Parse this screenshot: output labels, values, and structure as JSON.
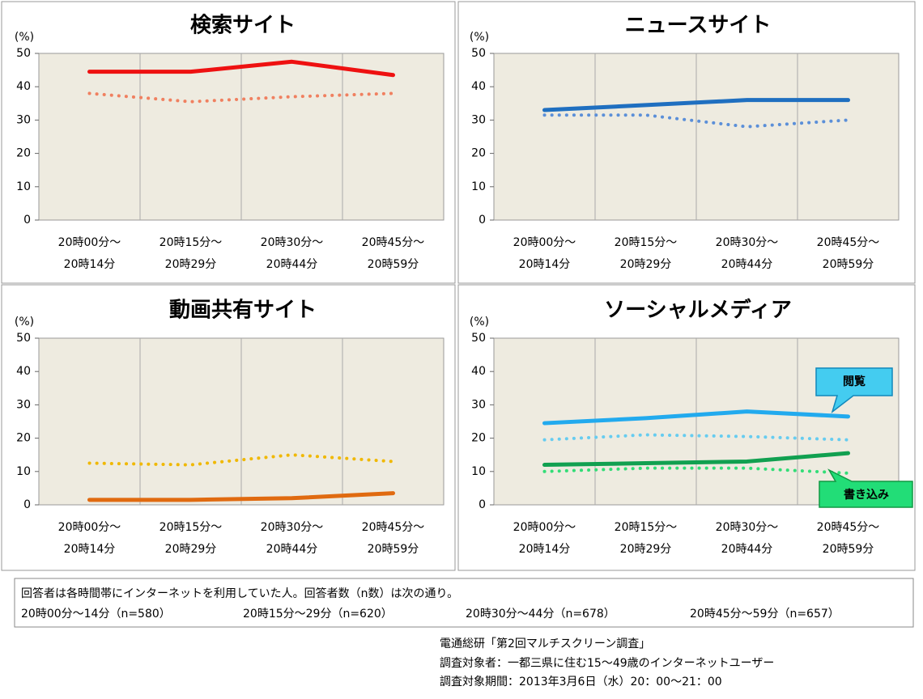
{
  "chart_data": [
    {
      "type": "line",
      "title": "検索サイト",
      "ylabel": "(%)",
      "categories": [
        [
          "20時00分〜",
          "20時14分"
        ],
        [
          "20時15分〜",
          "20時29分"
        ],
        [
          "20時30分〜",
          "20時44分"
        ],
        [
          "20時45分〜",
          "20時59分"
        ]
      ],
      "series": [
        {
          "color": "#ee1111",
          "dash": false,
          "values": [
            44.5,
            44.5,
            47.5,
            43.5
          ]
        },
        {
          "color": "#f08060",
          "dash": true,
          "values": [
            38,
            35.5,
            37,
            38
          ]
        }
      ],
      "ylim": [
        0,
        50
      ],
      "yticks": [
        0,
        10,
        20,
        30,
        40,
        50
      ]
    },
    {
      "type": "line",
      "title": "ニュースサイト",
      "ylabel": "(%)",
      "categories": [
        [
          "20時00分〜",
          "20時14分"
        ],
        [
          "20時15分〜",
          "20時29分"
        ],
        [
          "20時30分〜",
          "20時44分"
        ],
        [
          "20時45分〜",
          "20時59分"
        ]
      ],
      "series": [
        {
          "color": "#1f6fc0",
          "dash": false,
          "values": [
            33,
            34.5,
            36,
            36
          ]
        },
        {
          "color": "#5b8fd8",
          "dash": true,
          "values": [
            31.5,
            31.5,
            28,
            30
          ]
        }
      ],
      "ylim": [
        0,
        50
      ],
      "yticks": [
        0,
        10,
        20,
        30,
        40,
        50
      ]
    },
    {
      "type": "line",
      "title": "動画共有サイト",
      "ylabel": "(%)",
      "categories": [
        [
          "20時00分〜",
          "20時14分"
        ],
        [
          "20時15分〜",
          "20時29分"
        ],
        [
          "20時30分〜",
          "20時44分"
        ],
        [
          "20時45分〜",
          "20時59分"
        ]
      ],
      "series": [
        {
          "color": "#e06a10",
          "dash": false,
          "values": [
            1.5,
            1.5,
            2,
            3.5
          ]
        },
        {
          "color": "#f0b800",
          "dash": true,
          "values": [
            12.5,
            12,
            15,
            13
          ]
        }
      ],
      "ylim": [
        0,
        50
      ],
      "yticks": [
        0,
        10,
        20,
        30,
        40,
        50
      ]
    },
    {
      "type": "line",
      "title": "ソーシャルメディア",
      "ylabel": "(%)",
      "categories": [
        [
          "20時00分〜",
          "20時14分"
        ],
        [
          "20時15分〜",
          "20時29分"
        ],
        [
          "20時30分〜",
          "20時44分"
        ],
        [
          "20時45分〜",
          "20時59分"
        ]
      ],
      "series": [
        {
          "color": "#22aaee",
          "dash": false,
          "values": [
            24.5,
            26,
            28,
            26.5
          ]
        },
        {
          "color": "#66ccf0",
          "dash": true,
          "values": [
            19.5,
            21,
            20.5,
            19.5
          ]
        },
        {
          "color": "#11a050",
          "dash": false,
          "values": [
            12,
            12.5,
            13,
            15.5
          ]
        },
        {
          "color": "#33dd77",
          "dash": true,
          "values": [
            10,
            11,
            11,
            9.5
          ]
        }
      ],
      "annotations": [
        "閲覧",
        "書き込み"
      ],
      "ylim": [
        0,
        50
      ],
      "yticks": [
        0,
        10,
        20,
        30,
        40,
        50
      ]
    }
  ],
  "note": {
    "line1": "回答者は各時間帯にインターネットを利用していた人。回答者数（n数）は次の通り。",
    "counts": [
      "20時00分〜14分（n=580）",
      "20時15分〜29分（n=620）",
      "20時30分〜44分（n=678）",
      "20時45分〜59分（n=657）"
    ]
  },
  "source": [
    "電通総研「第2回マルチスクリーン調査」",
    "調査対象者：一都三県に住む15〜49歳のインターネットユーザー",
    "調査対象期間：2013年3月6日（水）20：00〜21：00"
  ]
}
